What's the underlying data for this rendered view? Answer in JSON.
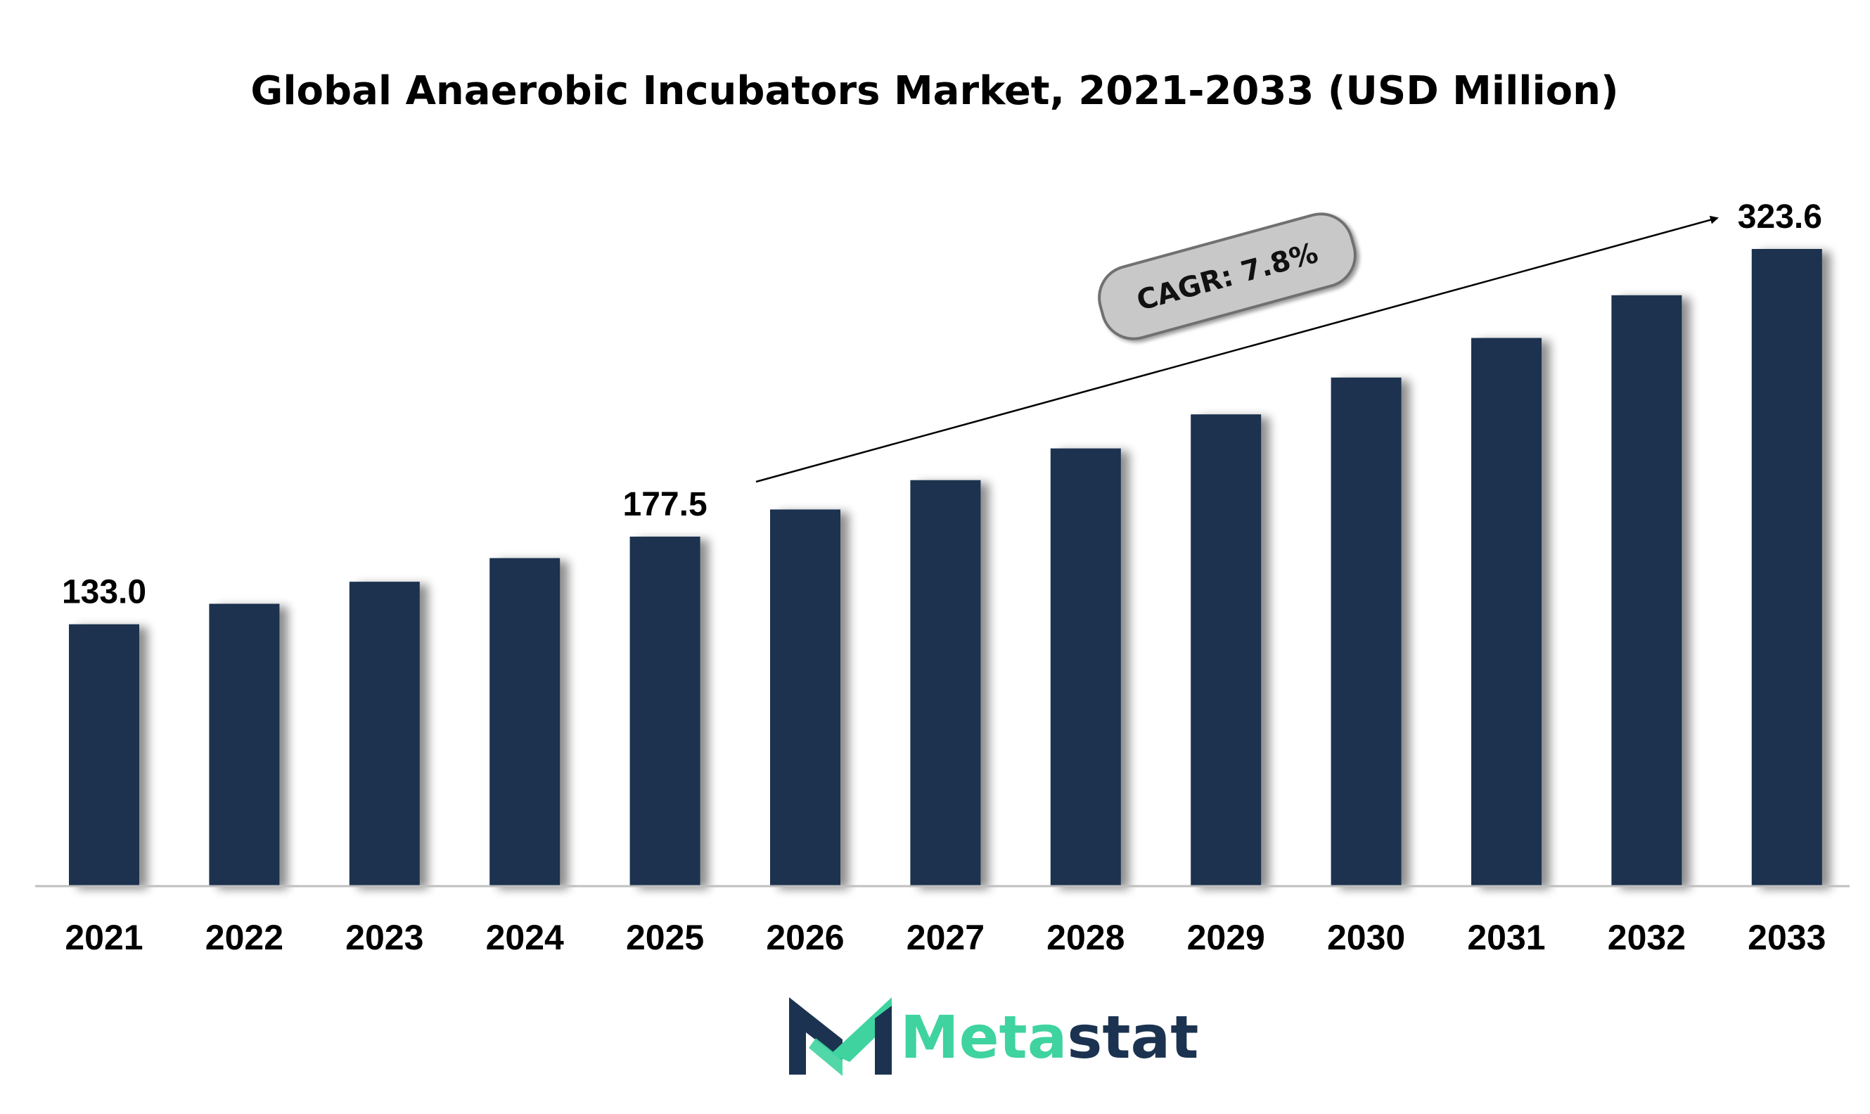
{
  "colors": {
    "bar": "#1b3350",
    "axis": "#bfbfbf",
    "cagr_fill": "#c8c8c8",
    "cagr_stroke": "#6f6f6f",
    "logo_accent": "#3fd3a0",
    "logo_dark": "#1b3350"
  },
  "chart_data": {
    "type": "bar",
    "title": "Global Anaerobic Incubators Market, 2021-2033 (USD Million)",
    "xlabel": "",
    "ylabel": "",
    "categories": [
      "2021",
      "2022",
      "2023",
      "2024",
      "2025",
      "2026",
      "2027",
      "2028",
      "2029",
      "2030",
      "2031",
      "2032",
      "2033"
    ],
    "values": [
      133.0,
      143.4,
      154.6,
      166.6,
      177.5,
      191.3,
      206.2,
      222.3,
      239.6,
      258.3,
      278.4,
      300.1,
      323.6
    ],
    "data_labels": [
      {
        "category": "2021",
        "text": "133.0"
      },
      {
        "category": "2025",
        "text": "177.5"
      },
      {
        "category": "2033",
        "text": "323.6"
      }
    ],
    "ylim": [
      0,
      360
    ],
    "grid": false,
    "legend": "none",
    "annotation": "CAGR: 7.8%"
  },
  "logo": {
    "part1": "Meta",
    "part2": "stat",
    "icon": "metastat-m-logo-icon"
  }
}
